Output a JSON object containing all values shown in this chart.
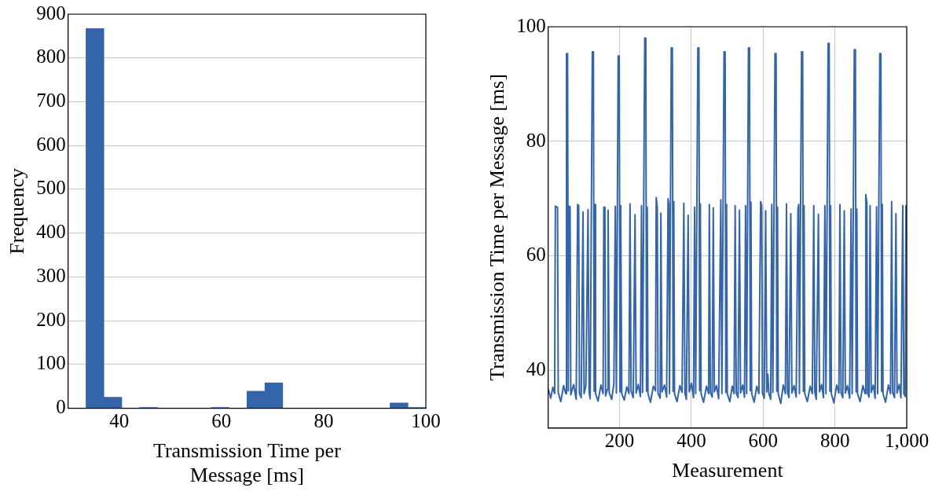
{
  "chart_data": [
    {
      "type": "histogram",
      "xlabel": "Transmission Time per Message [ms]",
      "ylabel": "Frequency",
      "color": "#3465a8",
      "bins": [
        33.5,
        37,
        40.5,
        44,
        47.5,
        51,
        54.5,
        58,
        61.5,
        65,
        68.5,
        72,
        75.5,
        79,
        82.5,
        86,
        89.5,
        93,
        96.5,
        100
      ],
      "values": [
        867,
        25,
        0,
        2,
        0,
        0,
        0,
        2,
        0,
        39,
        58,
        0,
        0,
        0,
        0,
        0,
        0,
        12,
        2
      ],
      "xlim": [
        30,
        100
      ],
      "xticks": [
        40,
        60,
        80,
        100
      ],
      "ylim": [
        0,
        900
      ],
      "yticks": [
        0,
        100,
        200,
        300,
        400,
        500,
        600,
        700,
        800,
        900
      ],
      "grid": "y"
    },
    {
      "type": "line",
      "xlabel": "Measurement",
      "ylabel": "Transmission Time per Message [ms]",
      "color": "#3465a8",
      "x": [
        1,
        8,
        14,
        19,
        21,
        27,
        29,
        36,
        44,
        50,
        52,
        55,
        57,
        59,
        62,
        64,
        72,
        79,
        83,
        86,
        88,
        93,
        98,
        101,
        106,
        112,
        115,
        118,
        124,
        127,
        129,
        131,
        133,
        140,
        148,
        154,
        156,
        159,
        161,
        166,
        168,
        171,
        178,
        184,
        188,
        191,
        196,
        199,
        201,
        203,
        206,
        213,
        220,
        226,
        229,
        232,
        238,
        243,
        246,
        252,
        258,
        261,
        264,
        270,
        273,
        275,
        277,
        279,
        286,
        294,
        300,
        302,
        305,
        307,
        313,
        315,
        318,
        325,
        331,
        335,
        337,
        339,
        344,
        347,
        349,
        351,
        353,
        360,
        368,
        374,
        379,
        382,
        386,
        391,
        394,
        400,
        406,
        409,
        412,
        418,
        421,
        423,
        425,
        427,
        434,
        442,
        448,
        450,
        453,
        458,
        461,
        464,
        470,
        476,
        482,
        485,
        491,
        494,
        496,
        498,
        500,
        507,
        514,
        519,
        522,
        525,
        530,
        534,
        537,
        543,
        548,
        551,
        554,
        559,
        562,
        564,
        566,
        568,
        575,
        582,
        588,
        593,
        596,
        598,
        603,
        607,
        610,
        613,
        616,
        621,
        624,
        627,
        633,
        636,
        638,
        640,
        642,
        649,
        656,
        662,
        665,
        668,
        672,
        677,
        680,
        686,
        692,
        697,
        699,
        701,
        707,
        710,
        712,
        714,
        716,
        723,
        731,
        737,
        741,
        744,
        748,
        754,
        757,
        763,
        768,
        772,
        775,
        781,
        784,
        786,
        788,
        790,
        797,
        805,
        811,
        814,
        817,
        822,
        826,
        829,
        835,
        841,
        845,
        848,
        854,
        857,
        859,
        861,
        863,
        870,
        878,
        884,
        886,
        889,
        891,
        895,
        898,
        901,
        907,
        912,
        916,
        919,
        925,
        928,
        930,
        932,
        934,
        941,
        949,
        955,
        958,
        961,
        966,
        970,
        973,
        979,
        984,
        989,
        992,
        996,
        998,
        1000
      ],
      "values": [
        36.8,
        35.2,
        37.1,
        36,
        68.7,
        68.5,
        36.2,
        34.6,
        37.4,
        36,
        95.3,
        95.3,
        36.5,
        68.7,
        68.6,
        35.8,
        37.6,
        35,
        69,
        68.8,
        36.1,
        35.3,
        67.7,
        36,
        37.4,
        68.1,
        36.3,
        35.1,
        95.6,
        95.6,
        36.4,
        69,
        36,
        34.7,
        37.5,
        36,
        68.5,
        68.5,
        35.6,
        36.8,
        68,
        36.2,
        35,
        37.8,
        68.7,
        36.1,
        94.9,
        94.9,
        36.3,
        68.8,
        36,
        34.9,
        37.2,
        36,
        69.1,
        36.5,
        35.3,
        67.2,
        36.1,
        37.6,
        35.5,
        68.8,
        36.2,
        98,
        98,
        36.4,
        68.5,
        36,
        34.5,
        37.3,
        36.5,
        70.2,
        68.5,
        36.1,
        35.2,
        67.5,
        36.3,
        37.5,
        35.4,
        70,
        69,
        36,
        96.3,
        96.3,
        36.4,
        69.5,
        36,
        34.6,
        37.4,
        36.2,
        69.2,
        36.1,
        35,
        67.1,
        36.3,
        37.8,
        35.3,
        68.5,
        36,
        96.3,
        96.3,
        36.5,
        69.1,
        36,
        34.5,
        37.3,
        36,
        69,
        36.2,
        35.4,
        68.4,
        36.3,
        37.4,
        35.1,
        69.8,
        36,
        95.6,
        95.6,
        36.2,
        69,
        36,
        34.6,
        37.3,
        36,
        68.8,
        36.2,
        35.3,
        68,
        36.1,
        37.5,
        35.4,
        68.8,
        36,
        96.3,
        96.3,
        36.5,
        69.4,
        36,
        34.5,
        37.3,
        36,
        69.5,
        68.8,
        36.1,
        35.2,
        67.9,
        36.3,
        39.4,
        36,
        35,
        69,
        36.2,
        95.3,
        95.3,
        36.4,
        68.5,
        36,
        34.3,
        37.5,
        36,
        69.1,
        36.2,
        35.3,
        67.4,
        36.1,
        37.4,
        35.4,
        68.1,
        69,
        36,
        95.6,
        95.6,
        36.4,
        68.8,
        36,
        34.6,
        37.3,
        36,
        68.8,
        36.2,
        35,
        67.3,
        36.3,
        37.6,
        35.3,
        68.8,
        36,
        97.1,
        97.1,
        36.4,
        68.8,
        36,
        34.4,
        37.5,
        36.1,
        69,
        36.2,
        35.3,
        67.9,
        36.1,
        37.4,
        35.2,
        68.2,
        36,
        96,
        96,
        36.3,
        68.2,
        36,
        34.6,
        37.4,
        36,
        70.7,
        69.3,
        36.1,
        35.4,
        68.8,
        36.2,
        37.5,
        35.2,
        68.6,
        36,
        95.3,
        95.3,
        36.4,
        69,
        36,
        34.5,
        37.5,
        36,
        69.5,
        36.2,
        35.3,
        67.4,
        36.1,
        37.6,
        35.3,
        68.8,
        36,
        35.5,
        68.8,
        68.8
      ],
      "xlim": [
        1,
        1000
      ],
      "xticks": [
        200,
        400,
        600,
        800,
        {
          "value": 1000,
          "label": "1,000"
        }
      ],
      "ylim": [
        30,
        100
      ],
      "yticks": [
        40,
        60,
        80,
        100
      ],
      "grid": true
    }
  ]
}
